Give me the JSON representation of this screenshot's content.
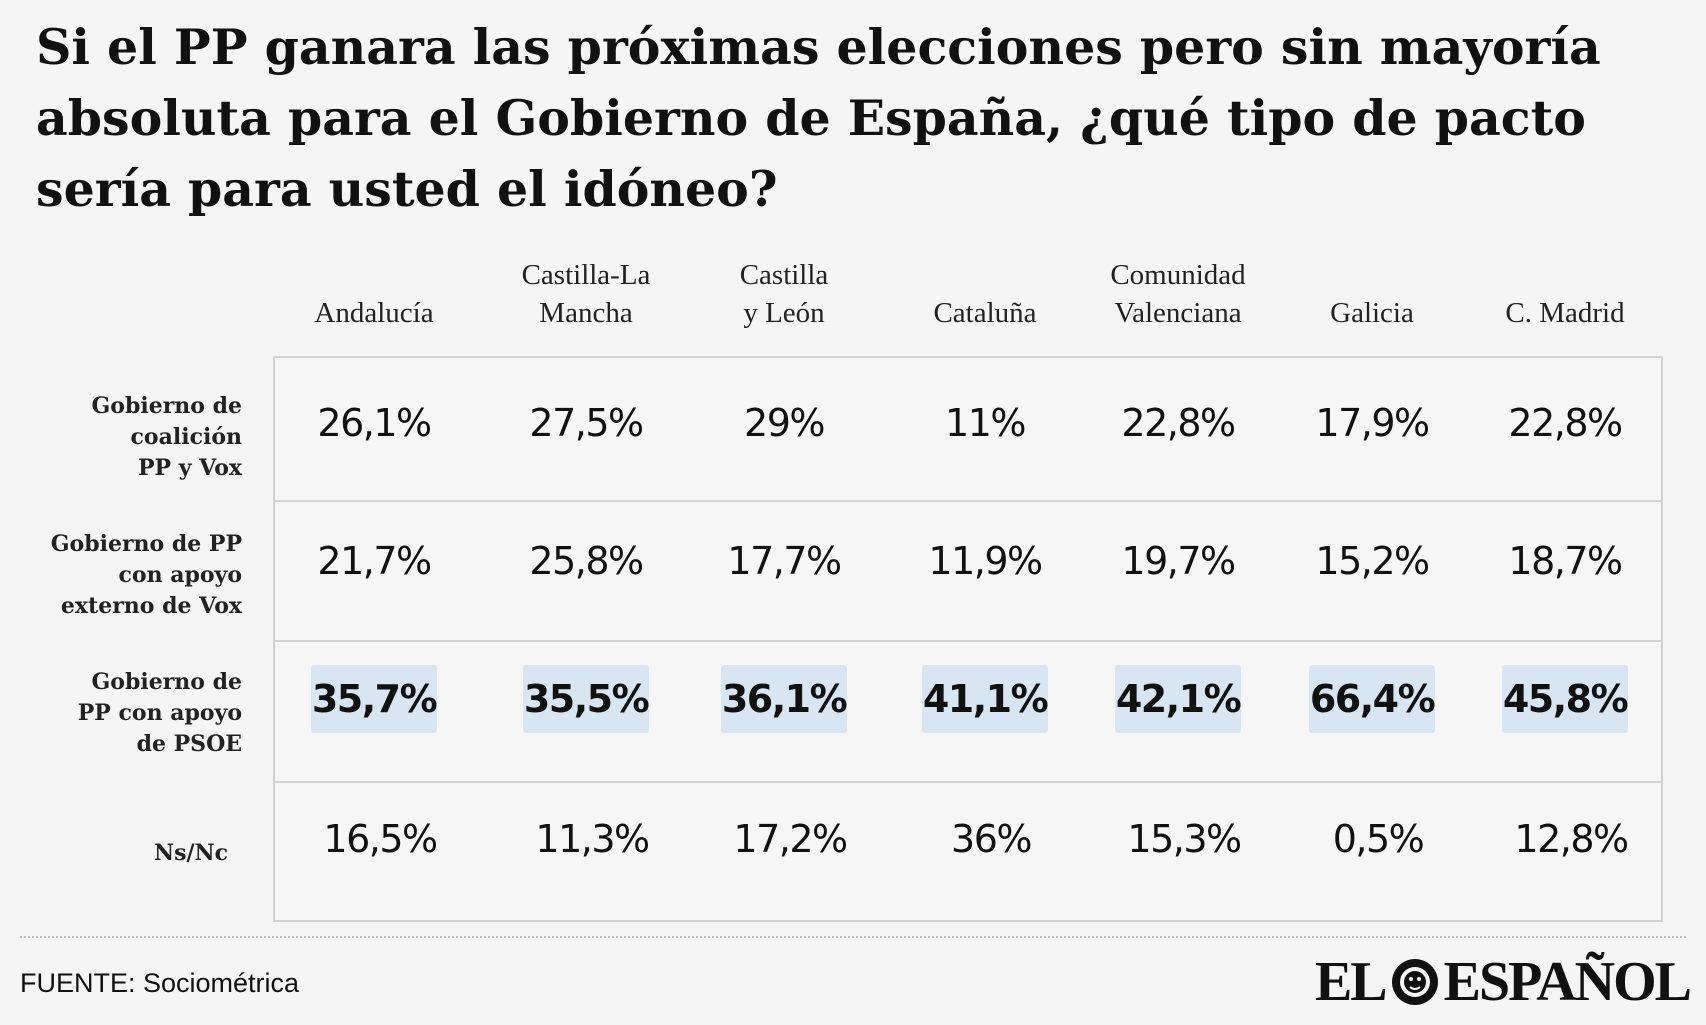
{
  "title": "Si el PP ganara las próximas elecciones pero sin  mayoría absoluta para el Gobierno de España, ¿qué tipo de pacto sería para usted el idóneo?",
  "source": "FUENTE: Sociométrica",
  "brand": {
    "left": "EL",
    "right": "ESPAÑOL"
  },
  "colors": {
    "highlight": "#d8e5f3",
    "grid": "#d2d2d2",
    "background": "#f5f5f5"
  },
  "columns": [
    "Andalucía",
    "Castilla-La\nMancha",
    "Castilla\ny León",
    "Cataluña",
    "Comunidad\nValenciana",
    "Galicia",
    "C. Madrid"
  ],
  "rows": [
    {
      "label": "Gobierno de\ncoalición\nPP y Vox",
      "cells": [
        "26,1%",
        "27,5%",
        "29%",
        "11%",
        "22,8%",
        "17,9%",
        "22,8%"
      ]
    },
    {
      "label": "Gobierno de PP\ncon apoyo\nexterno de Vox",
      "cells": [
        "21,7%",
        "25,8%",
        "17,7%",
        "11,9%",
        "19,7%",
        "15,2%",
        "18,7%"
      ]
    },
    {
      "label": "Gobierno de\nPP con apoyo\nde PSOE",
      "cells": [
        "35,7%",
        "35,5%",
        "36,1%",
        "41,1%",
        "42,1%",
        "66,4%",
        "45,8%"
      ],
      "highlight": true
    },
    {
      "label": "Ns/Nc",
      "cells": [
        "16,5%",
        "11,3%",
        "17,2%",
        "36%",
        "15,3%",
        "0,5%",
        "12,8%"
      ]
    }
  ],
  "chart_data": {
    "type": "table",
    "title": "Si el PP ganara las próximas elecciones pero sin  mayoría absoluta para el Gobierno de España, ¿qué tipo de pacto sería para usted el idóneo?",
    "categories": [
      "Andalucía",
      "Castilla-La Mancha",
      "Castilla y León",
      "Cataluña",
      "Comunidad Valenciana",
      "Galicia",
      "C. Madrid"
    ],
    "series": [
      {
        "name": "Gobierno de coalición PP y Vox",
        "values": [
          26.1,
          27.5,
          29,
          11,
          22.8,
          17.9,
          22.8
        ]
      },
      {
        "name": "Gobierno de PP con apoyo externo de Vox",
        "values": [
          21.7,
          25.8,
          17.7,
          11.9,
          19.7,
          15.2,
          18.7
        ]
      },
      {
        "name": "Gobierno de PP con apoyo de PSOE",
        "values": [
          35.7,
          35.5,
          36.1,
          41.1,
          42.1,
          66.4,
          45.8
        ]
      },
      {
        "name": "Ns/Nc",
        "values": [
          16.5,
          11.3,
          17.2,
          36,
          15.3,
          0.5,
          12.8
        ]
      }
    ],
    "unit": "%"
  }
}
